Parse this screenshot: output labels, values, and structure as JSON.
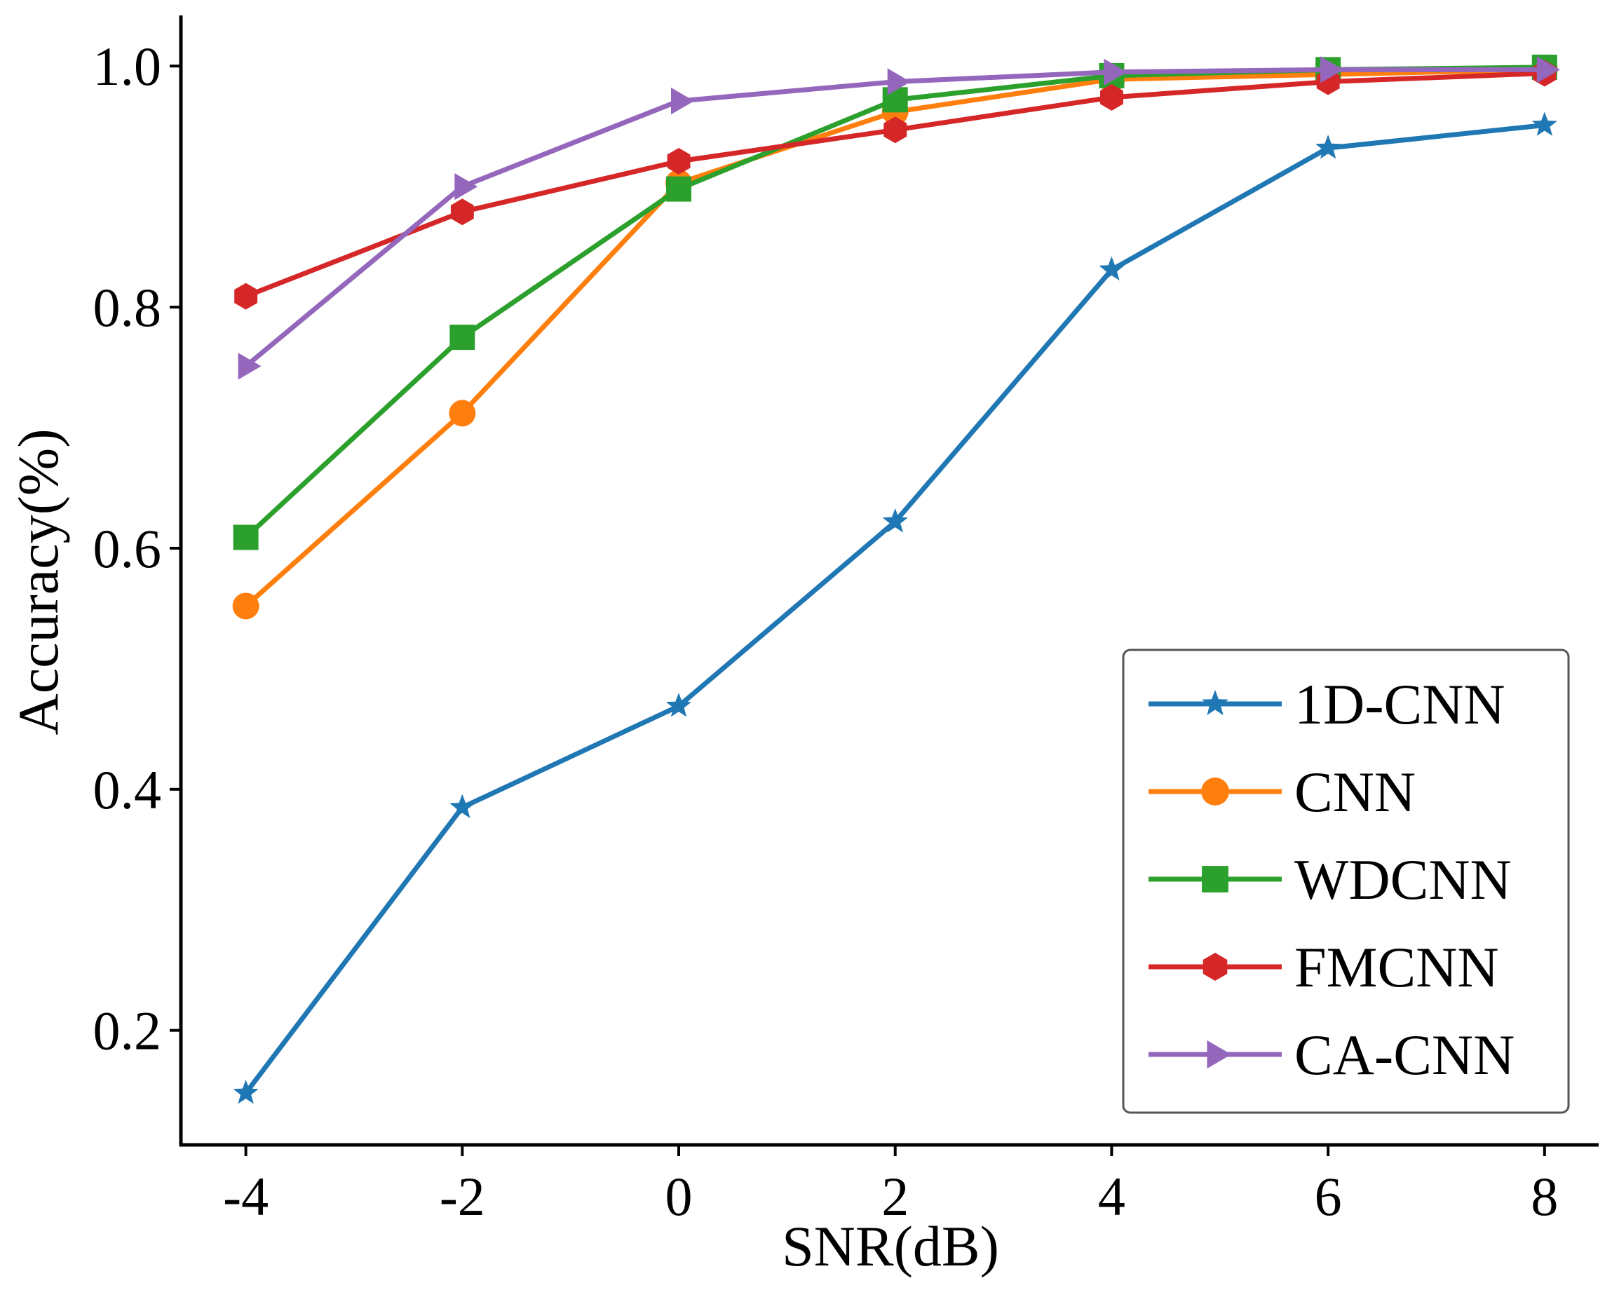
{
  "chart_data": {
    "type": "line",
    "title": "",
    "xlabel": "SNR(dB)",
    "ylabel": "Accuracy(%)",
    "x": [
      -4,
      -2,
      0,
      2,
      4,
      6,
      8
    ],
    "x_ticks": [
      "-4",
      "-2",
      "0",
      "2",
      "4",
      "6",
      "8"
    ],
    "y_ticks": [
      "0.2",
      "0.4",
      "0.6",
      "0.8",
      "1.0"
    ],
    "xlim": [
      -4.6,
      8.5
    ],
    "ylim": [
      0.105,
      1.042
    ],
    "grid": false,
    "legend_position": "bottom-right",
    "series": [
      {
        "name": "1D-CNN",
        "color": "#1f77b4",
        "marker": "star",
        "values": [
          0.148,
          0.385,
          0.469,
          0.622,
          0.831,
          0.932,
          0.951
        ]
      },
      {
        "name": "CNN",
        "color": "#ff7f0e",
        "marker": "circle",
        "values": [
          0.552,
          0.712,
          0.903,
          0.962,
          0.989,
          0.993,
          0.997
        ]
      },
      {
        "name": "WDCNN",
        "color": "#2ca02c",
        "marker": "square",
        "values": [
          0.609,
          0.775,
          0.898,
          0.972,
          0.992,
          0.997,
          0.999
        ]
      },
      {
        "name": "FMCNN",
        "color": "#d62728",
        "marker": "hexagon",
        "values": [
          0.809,
          0.879,
          0.921,
          0.947,
          0.974,
          0.987,
          0.994
        ]
      },
      {
        "name": "CA-CNN",
        "color": "#9467bd",
        "marker": "triangle-right",
        "values": [
          0.751,
          0.9,
          0.971,
          0.987,
          0.995,
          0.997,
          0.997
        ]
      }
    ]
  }
}
